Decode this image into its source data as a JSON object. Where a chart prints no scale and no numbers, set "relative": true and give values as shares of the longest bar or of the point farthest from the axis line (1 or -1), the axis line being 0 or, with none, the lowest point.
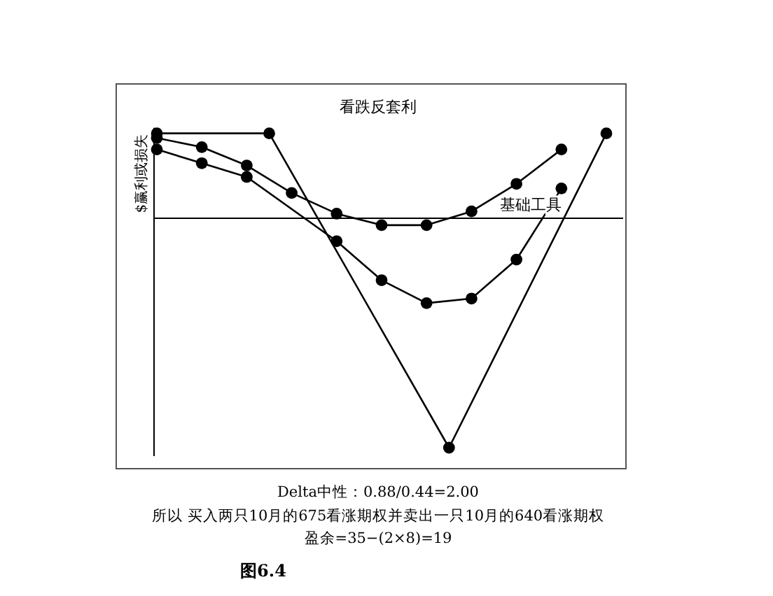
{
  "chart_data": {
    "type": "line",
    "title": "看跌反套利",
    "ylabel": "$赢利或损失",
    "relative": true,
    "categories": [
      null,
      null,
      null,
      null,
      null,
      null,
      null,
      null,
      null,
      null,
      null,
      null,
      null,
      null,
      null,
      null,
      null,
      null,
      null,
      null,
      null
    ],
    "marker": "circle",
    "line_style": "solid",
    "series": [
      {
        "color": "#000000",
        "values": [
          0.35,
          null,
          0.31,
          null,
          0.23,
          null,
          0.11,
          null,
          0.02,
          null,
          -0.03,
          null,
          -0.03,
          null,
          0.03,
          null,
          0.15,
          null,
          0.3,
          null,
          null
        ]
      },
      {
        "color": "#000000",
        "values": [
          0.3,
          null,
          0.24,
          null,
          0.18,
          null,
          null,
          null,
          -0.1,
          null,
          -0.27,
          null,
          -0.37,
          null,
          -0.35,
          null,
          -0.18,
          null,
          0.13,
          null,
          null
        ]
      },
      {
        "color": "#000000",
        "values": [
          0.37,
          null,
          null,
          null,
          null,
          0.37,
          null,
          null,
          null,
          null,
          null,
          null,
          null,
          -1,
          null,
          null,
          null,
          null,
          null,
          null,
          0.37
        ]
      }
    ],
    "annotations": [
      "基础工具",
      "Delta中性：0.88/0.44=2.00",
      "所以 买入两只10月的675看涨期权并卖出一只10月的640看涨期权",
      "盈余=35−(2×8)=19",
      "图6.4"
    ]
  }
}
